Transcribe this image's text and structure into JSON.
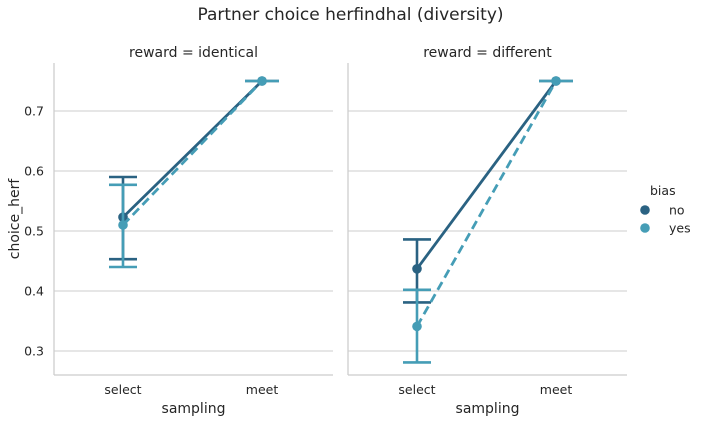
{
  "chart_data": {
    "type": "line",
    "title": "Partner choice herfindhal (diversity)",
    "xlabel": "sampling",
    "ylabel": "choice_herf",
    "categories": [
      "select",
      "meet"
    ],
    "ylim": [
      0.26,
      0.78
    ],
    "yticks": [
      "0.3",
      "0.4",
      "0.5",
      "0.6",
      "0.7"
    ],
    "grid": true,
    "legend": {
      "title": "bias",
      "position": "right",
      "entries": [
        {
          "name": "no",
          "color": "#2a6282",
          "linestyle": "solid"
        },
        {
          "name": "yes",
          "color": "#459db6",
          "linestyle": "dashed"
        }
      ]
    },
    "panels": [
      {
        "title": "reward = identical",
        "series": [
          {
            "name": "no",
            "values": [
              0.523,
              0.75
            ],
            "ci": [
              [
                0.453,
                0.59
              ],
              [
                0.75,
                0.75
              ]
            ]
          },
          {
            "name": "yes",
            "values": [
              0.51,
              0.75
            ],
            "ci": [
              [
                0.44,
                0.577
              ],
              [
                0.75,
                0.75
              ]
            ]
          }
        ]
      },
      {
        "title": "reward = different",
        "series": [
          {
            "name": "no",
            "values": [
              0.437,
              0.75
            ],
            "ci": [
              [
                0.381,
                0.486
              ],
              [
                0.75,
                0.75
              ]
            ]
          },
          {
            "name": "yes",
            "values": [
              0.341,
              0.75
            ],
            "ci": [
              [
                0.281,
                0.402
              ],
              [
                0.75,
                0.75
              ]
            ]
          }
        ]
      }
    ]
  }
}
